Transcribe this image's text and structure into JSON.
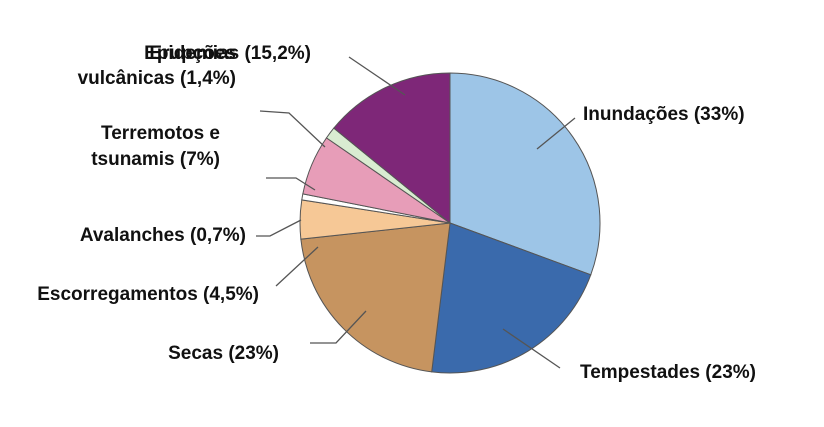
{
  "chart_data": {
    "type": "pie",
    "title": "",
    "slices": [
      {
        "label_lines": [
          "Inundações (33%)"
        ],
        "value": 33,
        "color": "#9dc5e7"
      },
      {
        "label_lines": [
          "Tempestades (23%)"
        ],
        "value": 23,
        "color": "#3a6aac"
      },
      {
        "label_lines": [
          "Secas (23%)"
        ],
        "value": 23,
        "color": "#c69460"
      },
      {
        "label_lines": [
          "Escorregamentos (4,5%)"
        ],
        "value": 4.5,
        "color": "#f6c896"
      },
      {
        "label_lines": [
          "Avalanches (0,7%)"
        ],
        "value": 0.7,
        "color": "#ffffff"
      },
      {
        "label_lines": [
          "Terremotos e",
          "tsunamis (7%)"
        ],
        "value": 7,
        "color": "#e79db8"
      },
      {
        "label_lines": [
          "Erupções",
          "vulcânicas (1,4%)"
        ],
        "value": 1.4,
        "color": "#d9ecd1"
      },
      {
        "label_lines": [
          "Epidemias (15,2%)"
        ],
        "value": 15.2,
        "color": "#7e2778"
      }
    ],
    "start_angle_deg": 0,
    "direction": "clockwise",
    "leader_line_color": "#555555",
    "outline_color": "#555555"
  }
}
